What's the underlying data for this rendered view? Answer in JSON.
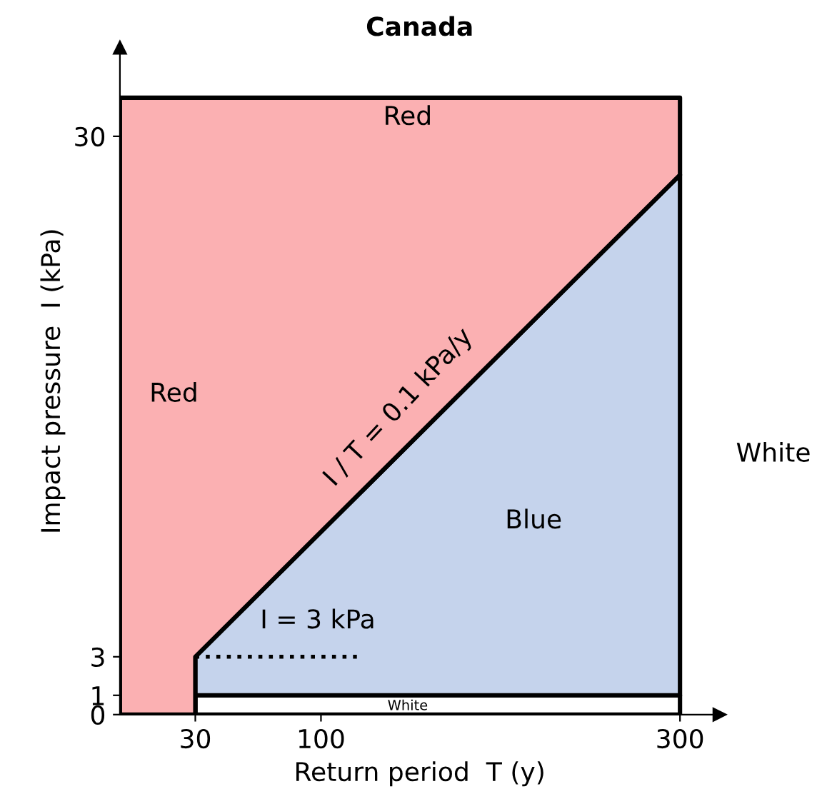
{
  "chart_data": {
    "type": "area",
    "title": "Canada",
    "xlabel": "Return period  T (y)",
    "ylabel": "Impact pressure  I (kPa)",
    "stacked": true,
    "x": [
      -12,
      30,
      30,
      300
    ],
    "series": [
      {
        "color": "#ffffff",
        "values": [
          0,
          0,
          1,
          1
        ]
      },
      {
        "color": "#c5d3ec",
        "values": [
          0,
          0,
          2,
          27
        ]
      },
      {
        "color": "#fbb0b2",
        "values": [
          32,
          32,
          29,
          4
        ]
      },
      {
        "type": "line",
        "x": [
          30,
          120
        ],
        "values": [
          3,
          3
        ],
        "color": "#000000",
        "line_style": "dotted"
      }
    ],
    "xlim": [
      -12,
      322
    ],
    "ylim": [
      0,
      34.6
    ],
    "xticks": [
      30,
      100,
      300
    ],
    "yticks": [
      0,
      1,
      3,
      30
    ],
    "annotations": [
      "Red",
      "Red",
      "Blue",
      "White",
      "White",
      "I / T = 0.1 kPa/y",
      "I = 3 kPa"
    ]
  }
}
